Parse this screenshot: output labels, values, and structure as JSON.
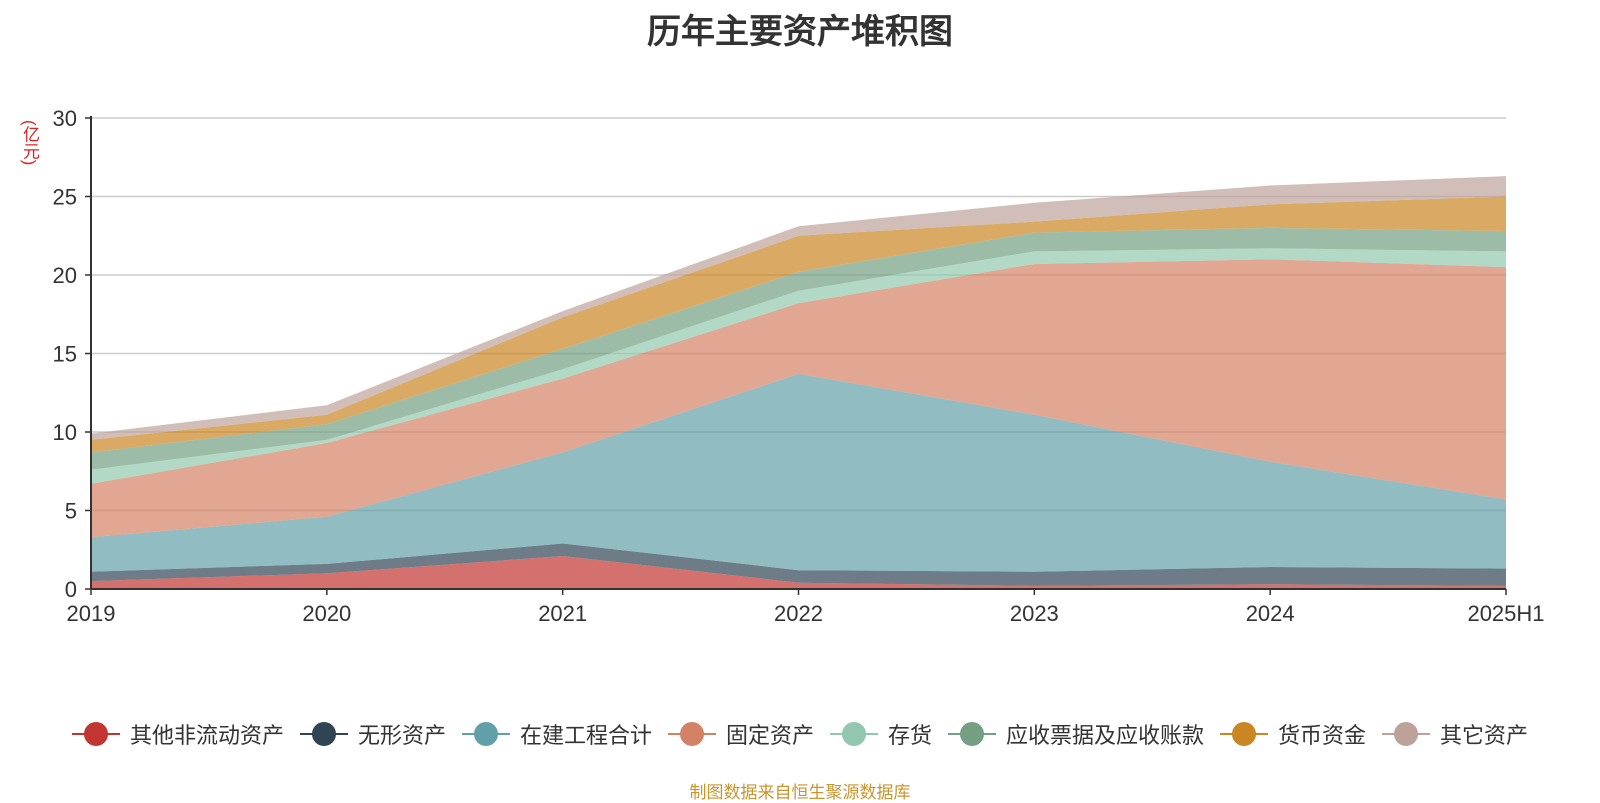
{
  "chart_data": {
    "type": "area",
    "stacked": true,
    "title": "历年主要资产堆积图",
    "y_unit": "(亿元)",
    "categories": [
      "2019",
      "2020",
      "2021",
      "2022",
      "2023",
      "2024",
      "2025H1"
    ],
    "ylim": [
      0,
      30
    ],
    "yticks": [
      "0",
      "5",
      "10",
      "15",
      "20",
      "25",
      "30"
    ],
    "grid": true,
    "legend_position": "bottom",
    "series": [
      {
        "name": "其他非流动资产",
        "color": "#c23531",
        "values": [
          0.5,
          1.0,
          2.1,
          0.4,
          0.2,
          0.3,
          0.2
        ]
      },
      {
        "name": "无形资产",
        "color": "#2f4554",
        "values": [
          0.6,
          0.6,
          0.8,
          0.8,
          0.9,
          1.1,
          1.1
        ]
      },
      {
        "name": "在建工程合计",
        "color": "#61a0a8",
        "values": [
          2.2,
          3.0,
          5.8,
          12.5,
          10.0,
          6.7,
          4.4
        ]
      },
      {
        "name": "固定资产",
        "color": "#d48265",
        "values": [
          3.4,
          4.7,
          4.7,
          4.5,
          9.6,
          12.9,
          14.8
        ]
      },
      {
        "name": "存货",
        "color": "#91c7ae",
        "values": [
          0.9,
          0.2,
          0.6,
          0.8,
          0.8,
          0.7,
          1.0
        ]
      },
      {
        "name": "应收票据及应收账款",
        "color": "#749f83",
        "values": [
          1.1,
          1.0,
          1.3,
          1.2,
          1.2,
          1.3,
          1.3
        ]
      },
      {
        "name": "货币资金",
        "color": "#ca8622",
        "values": [
          0.8,
          0.6,
          2.0,
          2.3,
          0.7,
          1.5,
          2.2
        ]
      },
      {
        "name": "其它资产",
        "color": "#bda29a",
        "values": [
          0.4,
          0.6,
          0.4,
          0.6,
          1.2,
          1.2,
          1.3
        ]
      }
    ]
  },
  "source_note": "制图数据来自恒生聚源数据库"
}
